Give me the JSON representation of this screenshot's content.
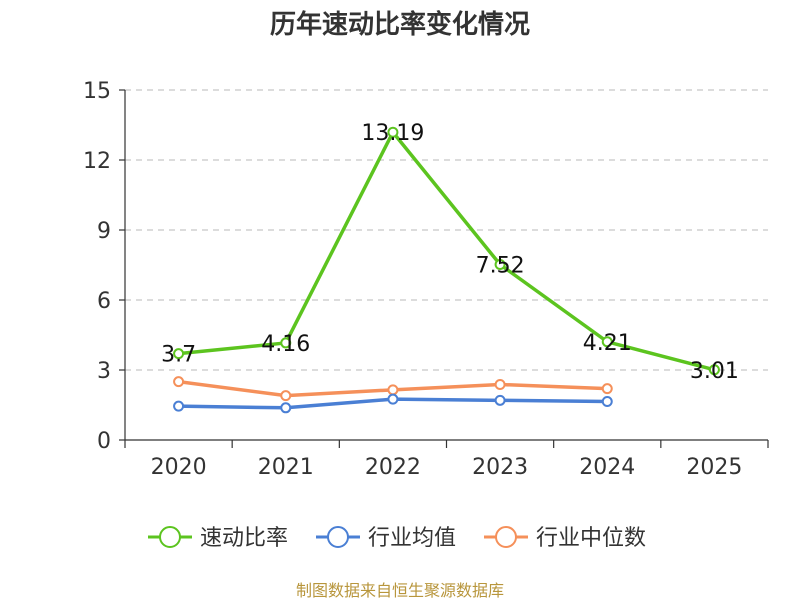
{
  "chart_data": {
    "type": "line",
    "title": "历年速动比率变化情况",
    "categories": [
      "2020",
      "2021",
      "2022",
      "2023",
      "2024",
      "2025"
    ],
    "ylim": [
      0,
      15
    ],
    "yticks": [
      "0",
      "3",
      "6",
      "9",
      "12",
      "15"
    ],
    "grid": true,
    "legend_position": "bottom",
    "series": [
      {
        "name": "速动比率",
        "color": "#5cc41f",
        "values": [
          3.7,
          4.16,
          13.19,
          7.52,
          4.21,
          3.01
        ],
        "labels": [
          "3.7",
          "4.16",
          "13.19",
          "7.52",
          "4.21",
          "3.01"
        ]
      },
      {
        "name": "行业均值",
        "color": "#4a7fd4",
        "values": [
          1.45,
          1.38,
          1.75,
          1.7,
          1.65,
          null
        ]
      },
      {
        "name": "行业中位数",
        "color": "#f5905a",
        "values": [
          2.5,
          1.9,
          2.15,
          2.38,
          2.2,
          null
        ]
      }
    ]
  },
  "footer": "制图数据来自恒生聚源数据库"
}
